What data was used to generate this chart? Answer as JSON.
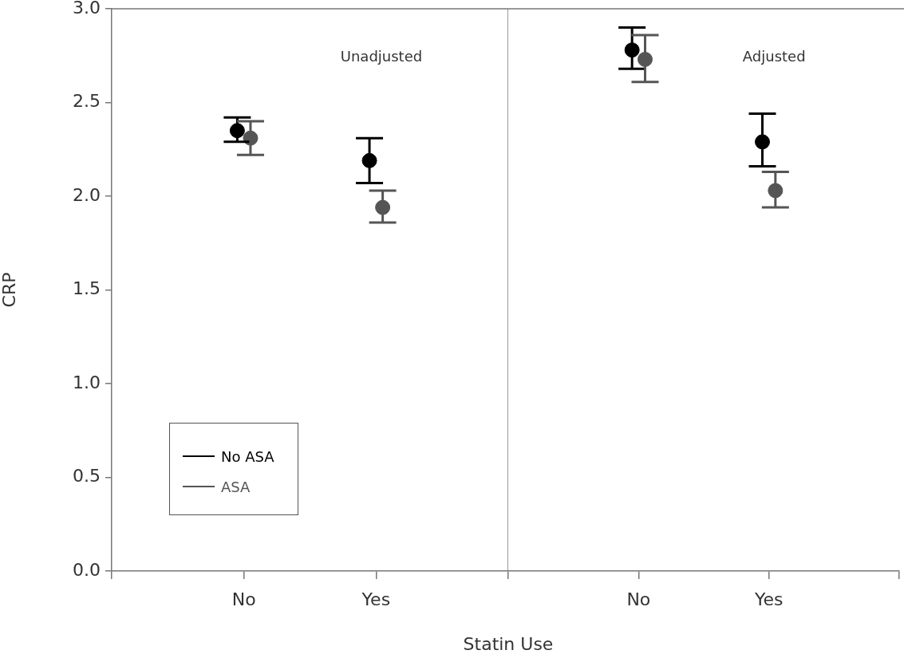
{
  "chart_data": [
    {
      "type": "scatter",
      "annotations": [
        "Unadjusted"
      ],
      "xlabel": "Statin Use",
      "ylabel": "CRP",
      "categories": [
        null,
        "No",
        "Yes",
        null
      ],
      "ylim": [
        0,
        3
      ],
      "yticks": [
        {
          "value": 0,
          "label": "0.0"
        },
        {
          "value": 0.5,
          "label": "0.5"
        },
        {
          "value": 1,
          "label": "1.0"
        },
        {
          "value": 1.5,
          "label": "1.5"
        },
        {
          "value": 2,
          "label": "2.0"
        },
        {
          "value": 2.5,
          "label": "2.5"
        },
        {
          "value": 3,
          "label": "3.0"
        }
      ],
      "legend": "bottom left",
      "marker": "circle",
      "series": [
        {
          "name": "No ASA",
          "color": "#000000",
          "values": [
            null,
            2.35,
            2.19,
            null
          ],
          "errors": [
            null,
            [
              2.29,
              2.42
            ],
            [
              2.07,
              2.31
            ],
            null
          ]
        },
        {
          "name": "ASA",
          "color": "#555555",
          "values": [
            null,
            2.31,
            1.94,
            null
          ],
          "errors": [
            null,
            [
              2.22,
              2.4
            ],
            [
              1.86,
              2.03
            ],
            null
          ]
        }
      ]
    },
    {
      "type": "scatter",
      "annotations": [
        "Adjusted"
      ],
      "categories": [
        null,
        "No",
        "Yes",
        null
      ],
      "ylim": [
        0,
        3
      ],
      "tick_labels": "x",
      "marker": "circle",
      "series": [
        {
          "color": "#000000",
          "values": [
            null,
            2.78,
            2.29,
            null
          ],
          "errors": [
            null,
            [
              2.68,
              2.9
            ],
            [
              2.16,
              2.44
            ],
            null
          ]
        },
        {
          "color": "#555555",
          "values": [
            null,
            2.73,
            2.03,
            null
          ],
          "errors": [
            null,
            [
              2.61,
              2.86
            ],
            [
              1.94,
              2.13
            ],
            null
          ]
        }
      ]
    }
  ]
}
